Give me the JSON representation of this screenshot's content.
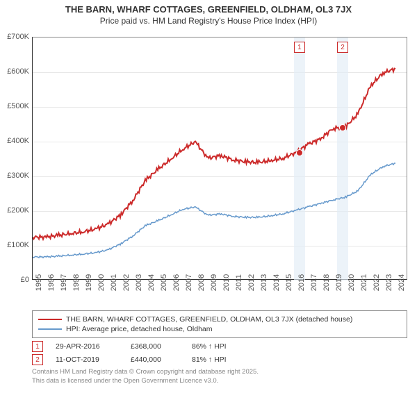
{
  "title": "THE BARN, WHARF COTTAGES, GREENFIELD, OLDHAM, OL3 7JX",
  "subtitle": "Price paid vs. HM Land Registry's House Price Index (HPI)",
  "chart": {
    "type": "line",
    "background_color": "#ffffff",
    "grid_color": "#e8e8e8",
    "axis_color": "#333333",
    "label_fontsize": 11,
    "x_years": [
      1995,
      1996,
      1997,
      1998,
      1999,
      2000,
      2001,
      2002,
      2003,
      2004,
      2005,
      2006,
      2007,
      2008,
      2009,
      2010,
      2011,
      2012,
      2013,
      2014,
      2015,
      2016,
      2017,
      2018,
      2019,
      2020,
      2021,
      2022,
      2023,
      2024
    ],
    "xlim": [
      1995,
      2025
    ],
    "ylim": [
      0,
      700000
    ],
    "ytick_step": 100000,
    "ylabels": [
      "£0",
      "£100K",
      "£200K",
      "£300K",
      "£400K",
      "£500K",
      "£600K",
      "£700K"
    ],
    "series": [
      {
        "name": "THE BARN, WHARF COTTAGES, GREENFIELD, OLDHAM, OL3 7JX (detached house)",
        "color": "#cc2a2a",
        "line_width": 2,
        "values_k": [
          125,
          125,
          130,
          135,
          140,
          148,
          162,
          188,
          230,
          288,
          320,
          348,
          378,
          400,
          352,
          360,
          348,
          342,
          340,
          345,
          352,
          368,
          392,
          408,
          438,
          442,
          480,
          560,
          598,
          610
        ]
      },
      {
        "name": "HPI: Average price, detached house, Oldham",
        "color": "#6699cc",
        "line_width": 1.5,
        "values_k": [
          68,
          68,
          70,
          73,
          76,
          80,
          88,
          105,
          128,
          158,
          172,
          188,
          205,
          212,
          188,
          192,
          185,
          182,
          182,
          186,
          192,
          202,
          212,
          222,
          232,
          240,
          258,
          305,
          328,
          338
        ]
      }
    ],
    "markers": [
      {
        "num": "1",
        "year": 2016.33,
        "y_k": 368
      },
      {
        "num": "2",
        "year": 2019.78,
        "y_k": 440
      }
    ]
  },
  "legend_label_1": "THE BARN, WHARF COTTAGES, GREENFIELD, OLDHAM, OL3 7JX (detached house)",
  "legend_label_2": "HPI: Average price, detached house, Oldham",
  "sales": [
    {
      "num": "1",
      "date": "29-APR-2016",
      "price": "£368,000",
      "hpi": "86% ↑ HPI"
    },
    {
      "num": "2",
      "date": "11-OCT-2019",
      "price": "£440,000",
      "hpi": "81% ↑ HPI"
    }
  ],
  "footer_line1": "Contains HM Land Registry data © Crown copyright and database right 2025.",
  "footer_line2": "This data is licensed under the Open Government Licence v3.0."
}
